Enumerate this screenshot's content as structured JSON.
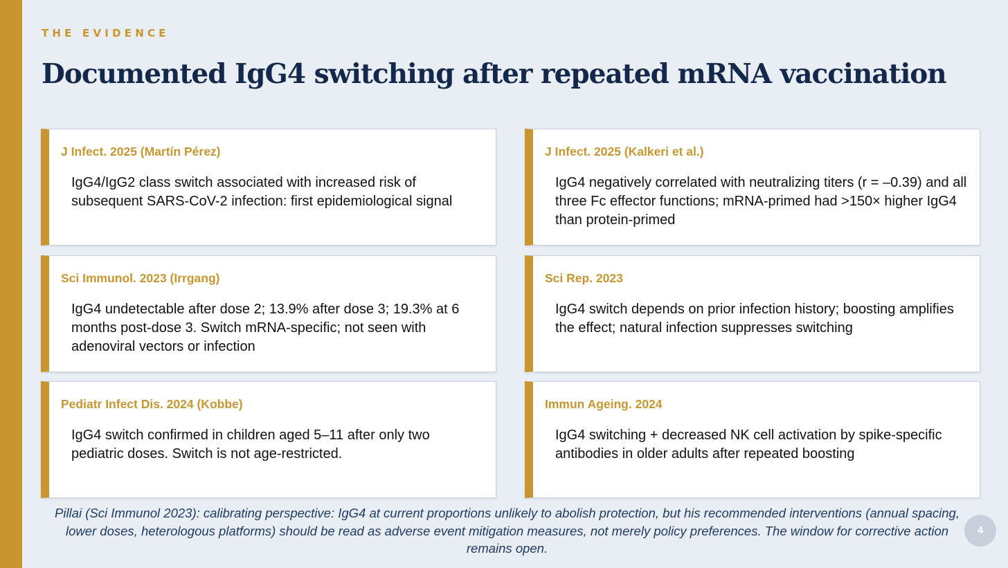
{
  "slide": {
    "kicker": "THE EVIDENCE",
    "title": "Documented IgG4 switching after repeated mRNA vaccination",
    "page_number": "4",
    "accent_color": "#c8962e",
    "title_color": "#13284a",
    "background_color": "#e9eef5"
  },
  "cards": [
    {
      "citation": "J Infect. 2025 (Martín Pérez)",
      "finding": "IgG4/IgG2 class switch associated with increased risk of subsequent SARS-CoV-2 infection: first epidemiological signal"
    },
    {
      "citation": "J Infect. 2025 (Kalkeri et al.)",
      "finding": "IgG4 negatively correlated with neutralizing titers (r = –0.39) and all three Fc effector functions; mRNA-primed had >150× higher IgG4 than protein-primed"
    },
    {
      "citation": "Sci Immunol. 2023 (Irrgang)",
      "finding": "IgG4 undetectable after dose 2; 13.9% after dose 3; 19.3% at 6 months post-dose 3. Switch mRNA-specific; not seen with adenoviral vectors or infection"
    },
    {
      "citation": "Sci Rep. 2023",
      "finding": "IgG4 switch depends on prior infection history; boosting amplifies the effect; natural infection suppresses switching"
    },
    {
      "citation": "Pediatr Infect Dis. 2024 (Kobbe)",
      "finding": "IgG4 switch confirmed in children aged 5–11 after only two pediatric doses. Switch is not age-restricted."
    },
    {
      "citation": "Immun Ageing. 2024",
      "finding": "IgG4 switching + decreased NK cell activation by spike-specific antibodies in older adults after repeated boosting"
    }
  ],
  "footer_note": "Pillai (Sci Immunol 2023): calibrating perspective: IgG4 at current proportions unlikely to abolish protection, but his recommended interventions (annual spacing, lower doses, heterologous platforms) should be read as adverse event mitigation measures, not merely policy preferences. The window for corrective action remains open."
}
